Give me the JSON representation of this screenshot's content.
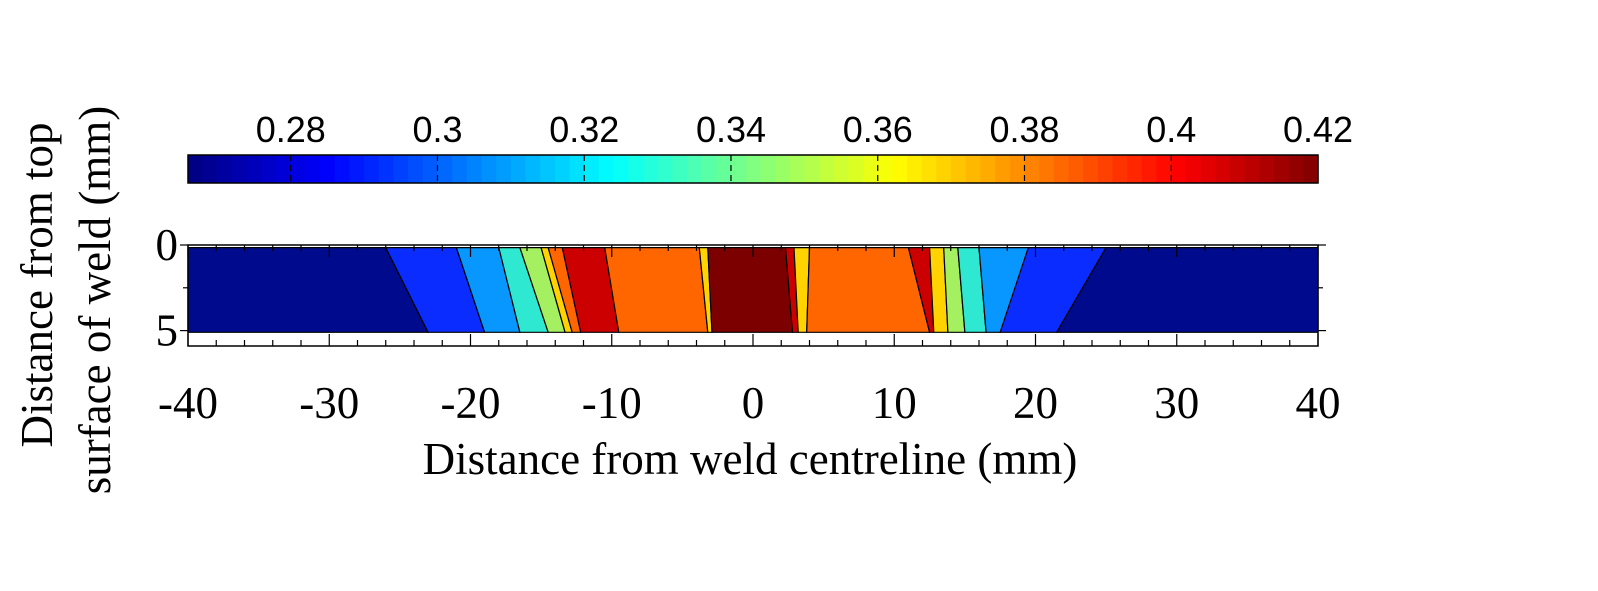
{
  "chart_data": {
    "type": "heatmap",
    "xlabel": "Distance from weld centreline (mm)",
    "ylabel_lines": [
      "Distance from top",
      "surface of weld (mm)"
    ],
    "xlim": [
      -40,
      40
    ],
    "ylim": [
      0,
      5.9
    ],
    "x_ticks": [
      "-40",
      "-30",
      "-20",
      "-10",
      "0",
      "10",
      "20",
      "30",
      "40"
    ],
    "y_ticks": [
      "0",
      "5"
    ],
    "colorbar": {
      "ticks": [
        "0.28",
        "0.3",
        "0.32",
        "0.34",
        "0.36",
        "0.38",
        "0.4",
        "0.42"
      ],
      "tick_values": [
        0.28,
        0.3,
        0.32,
        0.34,
        0.36,
        0.38,
        0.4,
        0.42
      ],
      "range": [
        0.266,
        0.42
      ],
      "colormap": "jet",
      "placement": "top"
    },
    "contour_levels": [
      0.28,
      0.29,
      0.3,
      0.31,
      0.32,
      0.33,
      0.34,
      0.35,
      0.36,
      0.37,
      0.38,
      0.39,
      0.4,
      0.41
    ],
    "band_colors": [
      "#7d0000",
      "#cc0000",
      "#ff6600",
      "#ffd200",
      "#a4f060",
      "#2fe8d2",
      "#0896ff",
      "#0a2cff",
      "#000a8c"
    ],
    "regions": [
      {
        "band": 8,
        "top": [
          [
            -40,
            0.15
          ],
          [
            -26,
            0.15
          ]
        ],
        "bottom": [
          [
            -40,
            5.1
          ],
          [
            -23,
            5.1
          ]
        ]
      },
      {
        "band": 7,
        "top": [
          [
            -26,
            0.15
          ],
          [
            -21,
            0.15
          ]
        ],
        "bottom": [
          [
            -23,
            5.1
          ],
          [
            -19,
            5.1
          ]
        ]
      },
      {
        "band": 6,
        "top": [
          [
            -21,
            0.15
          ],
          [
            -18,
            0.15
          ]
        ],
        "bottom": [
          [
            -19,
            5.1
          ],
          [
            -16.5,
            5.1
          ]
        ]
      },
      {
        "band": 5,
        "top": [
          [
            -18,
            0.15
          ],
          [
            -16.5,
            0.15
          ]
        ],
        "bottom": [
          [
            -16.5,
            5.1
          ],
          [
            -14.5,
            5.1
          ]
        ]
      },
      {
        "band": 4,
        "top": [
          [
            -16.5,
            0.15
          ],
          [
            -15,
            0.15
          ]
        ],
        "bottom": [
          [
            -14.5,
            5.1
          ],
          [
            -13.3,
            5.1
          ]
        ]
      },
      {
        "band": 3,
        "top": [
          [
            -15,
            0.15
          ],
          [
            -14.5,
            0.15
          ]
        ],
        "bottom": [
          [
            -13.3,
            5.1
          ],
          [
            -12.8,
            5.1
          ]
        ]
      },
      {
        "band": 2,
        "top": [
          [
            -14.5,
            0.15
          ],
          [
            -13.5,
            0.15
          ]
        ],
        "bottom": [
          [
            -12.8,
            5.1
          ],
          [
            -12.2,
            5.1
          ]
        ]
      },
      {
        "band": 1,
        "top": [
          [
            -13.5,
            0.15
          ],
          [
            -10.5,
            0.15
          ]
        ],
        "bottom": [
          [
            -12.2,
            5.1
          ],
          [
            -9.5,
            5.1
          ]
        ]
      },
      {
        "band": 2,
        "top": [
          [
            -10.5,
            0.15
          ],
          [
            -3.8,
            0.15
          ]
        ],
        "bottom": [
          [
            -9.5,
            5.1
          ],
          [
            -3.2,
            5.1
          ]
        ]
      },
      {
        "band": 3,
        "top": [
          [
            -3.8,
            0.15
          ],
          [
            -3.2,
            0.15
          ]
        ],
        "bottom": [
          [
            -3.2,
            5.1
          ],
          [
            -2.9,
            5.1
          ]
        ]
      },
      {
        "band": 0,
        "top": [
          [
            -3.2,
            0.15
          ],
          [
            2.3,
            0.15
          ]
        ],
        "bottom": [
          [
            -2.9,
            5.1
          ],
          [
            2.8,
            5.1
          ]
        ]
      },
      {
        "band": 1,
        "top": [
          [
            2.3,
            0.15
          ],
          [
            2.9,
            0.15
          ]
        ],
        "bottom": [
          [
            2.8,
            5.1
          ],
          [
            3.2,
            5.1
          ]
        ]
      },
      {
        "band": 3,
        "top": [
          [
            2.9,
            0.15
          ],
          [
            4.0,
            0.15
          ]
        ],
        "bottom": [
          [
            3.2,
            5.1
          ],
          [
            3.8,
            5.1
          ]
        ]
      },
      {
        "band": 2,
        "top": [
          [
            4.0,
            0.15
          ],
          [
            11,
            0.15
          ]
        ],
        "bottom": [
          [
            3.8,
            5.1
          ],
          [
            12.5,
            5.1
          ]
        ]
      },
      {
        "band": 1,
        "top": [
          [
            11,
            0.15
          ],
          [
            12.5,
            0.15
          ]
        ],
        "bottom": [
          [
            12.5,
            5.1
          ],
          [
            12.8,
            5.1
          ]
        ]
      },
      {
        "band": 3,
        "top": [
          [
            12.5,
            0.15
          ],
          [
            13.5,
            0.15
          ]
        ],
        "bottom": [
          [
            12.8,
            5.1
          ],
          [
            13.8,
            5.1
          ]
        ]
      },
      {
        "band": 4,
        "top": [
          [
            13.5,
            0.15
          ],
          [
            14.5,
            0.15
          ]
        ],
        "bottom": [
          [
            13.8,
            5.1
          ],
          [
            15.0,
            5.1
          ]
        ]
      },
      {
        "band": 5,
        "top": [
          [
            14.5,
            0.15
          ],
          [
            16.0,
            0.15
          ]
        ],
        "bottom": [
          [
            15.0,
            5.1
          ],
          [
            16.5,
            5.1
          ]
        ]
      },
      {
        "band": 6,
        "top": [
          [
            16.0,
            0.15
          ],
          [
            19.5,
            0.15
          ]
        ],
        "bottom": [
          [
            16.5,
            5.1
          ],
          [
            17.5,
            5.1
          ]
        ]
      },
      {
        "band": 7,
        "top": [
          [
            19.5,
            0.15
          ],
          [
            25,
            0.15
          ]
        ],
        "bottom": [
          [
            17.5,
            5.1
          ],
          [
            21.5,
            5.1
          ]
        ]
      },
      {
        "band": 8,
        "top": [
          [
            25,
            0.15
          ],
          [
            40,
            0.15
          ]
        ],
        "bottom": [
          [
            21.5,
            5.1
          ],
          [
            40,
            5.1
          ]
        ]
      }
    ]
  }
}
